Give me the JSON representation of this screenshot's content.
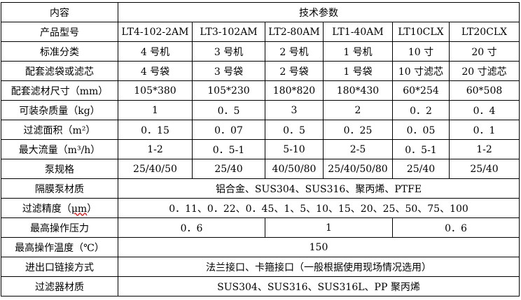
{
  "table": {
    "rows": [
      {
        "label": "内容",
        "cells": [
          {
            "text": "技术参数",
            "span": 6
          }
        ]
      },
      {
        "label": "产品型号",
        "cells": [
          {
            "text": "LT4-102-2AM"
          },
          {
            "text": "LT3-102AM"
          },
          {
            "text": "LT2-80AM"
          },
          {
            "text": "LT1-40AM"
          },
          {
            "text": "LT10CLX"
          },
          {
            "text": "LT20CLX"
          }
        ]
      },
      {
        "label": "标准分类",
        "cells": [
          {
            "text": "4 号机"
          },
          {
            "text": "3 号机"
          },
          {
            "text": "2 号机"
          },
          {
            "text": "1 号机"
          },
          {
            "text": "10 寸"
          },
          {
            "text": "20 寸"
          }
        ]
      },
      {
        "label": "配套滤袋或滤芯",
        "cells": [
          {
            "text": "4 号袋"
          },
          {
            "text": "3 号袋"
          },
          {
            "text": "2 号袋"
          },
          {
            "text": "1 号袋"
          },
          {
            "text": "10 寸滤芯"
          },
          {
            "text": "20 寸滤芯"
          }
        ]
      },
      {
        "label": "配套滤材尺寸（mm）",
        "cells": [
          {
            "text": "105*380"
          },
          {
            "text": "105*230"
          },
          {
            "text": "180*820"
          },
          {
            "text": "180*430"
          },
          {
            "text": "60*254"
          },
          {
            "text": "60*508"
          }
        ]
      },
      {
        "label": "可装杂质量（kg）",
        "cells": [
          {
            "text": "1"
          },
          {
            "text": "0．5"
          },
          {
            "text": "3"
          },
          {
            "text": "2"
          },
          {
            "text": "0．2"
          },
          {
            "text": "0．4"
          }
        ]
      },
      {
        "label": "过滤面积（m²）",
        "cells": [
          {
            "text": "0．15"
          },
          {
            "text": "0．07"
          },
          {
            "text": "0．5"
          },
          {
            "text": "0．25"
          },
          {
            "text": "0．05"
          },
          {
            "text": "0．1"
          }
        ]
      },
      {
        "label": "最大流量（m³/h）",
        "cells": [
          {
            "text": "1-2"
          },
          {
            "text": "0．5-1"
          },
          {
            "text": "5-10"
          },
          {
            "text": "2-5"
          },
          {
            "text": "0．5-1"
          },
          {
            "text": "1-2"
          }
        ]
      },
      {
        "label": "泵规格",
        "cells": [
          {
            "text": "25/40/50"
          },
          {
            "text": "25/40"
          },
          {
            "text": "40/50/80"
          },
          {
            "text": "25/40/50/80"
          },
          {
            "text": "25/40"
          },
          {
            "text": "25/40"
          }
        ]
      },
      {
        "label": "隔膜泵材质",
        "cells": [
          {
            "text": "铝合金、SUS304、SUS316、聚丙烯、PTFE",
            "span": 6
          }
        ]
      },
      {
        "label": "过滤精度（μm）",
        "cells": [
          {
            "text": "0．11、0．22、0．45、1、5、10、15、20、25、50、75、100",
            "span": 6
          }
        ]
      },
      {
        "label": "最高操作压力",
        "cells": [
          {
            "text": "0．6",
            "span": 2
          },
          {
            "text": "1",
            "span": 2
          },
          {
            "text": "0．6",
            "span": 2
          }
        ]
      },
      {
        "label": "最高操作温度（℃）",
        "cells": [
          {
            "text": "150",
            "span": 6
          }
        ]
      },
      {
        "label": "进出口链接方式",
        "cells": [
          {
            "text": "法兰接口、卡箍接口（一般根据使用现场情况选用）",
            "span": 6
          }
        ]
      },
      {
        "label": "过滤器材质",
        "cells": [
          {
            "text": "SUS304、SUS316、SUS316L、PP 聚丙烯",
            "span": 6
          }
        ]
      }
    ]
  }
}
